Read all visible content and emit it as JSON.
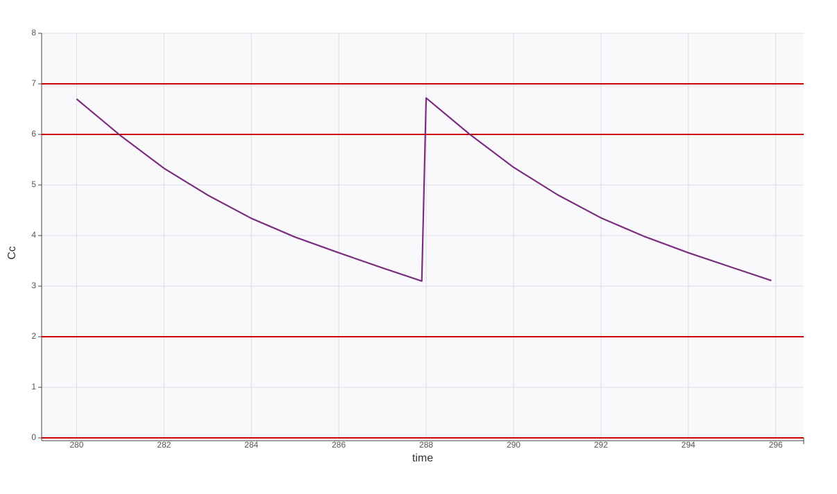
{
  "chart_data": {
    "type": "line",
    "x_label": "time",
    "y_label": "Cc",
    "x": [
      280,
      281,
      282,
      283,
      284,
      285,
      286,
      287,
      287.9,
      288,
      289,
      290,
      291,
      292,
      293,
      294,
      295,
      295.9
    ],
    "series": [
      {
        "name": "Cc",
        "color": "#7b2d7e",
        "values": [
          6.7,
          5.98,
          5.33,
          4.8,
          4.34,
          3.97,
          3.66,
          3.36,
          3.1,
          6.72,
          6.0,
          5.35,
          4.81,
          4.35,
          3.98,
          3.66,
          3.37,
          3.11
        ]
      }
    ],
    "reference_lines": {
      "color": "#cc0000",
      "values": [
        7,
        6,
        2,
        0
      ]
    },
    "xlim": [
      279.2,
      296.64
    ],
    "ylim": [
      0,
      8
    ],
    "xticks": [
      280,
      282,
      284,
      286,
      288,
      290,
      292,
      294,
      296
    ],
    "yticks": [
      0,
      1,
      2,
      3,
      4,
      5,
      6,
      7,
      8
    ],
    "grid": true
  }
}
